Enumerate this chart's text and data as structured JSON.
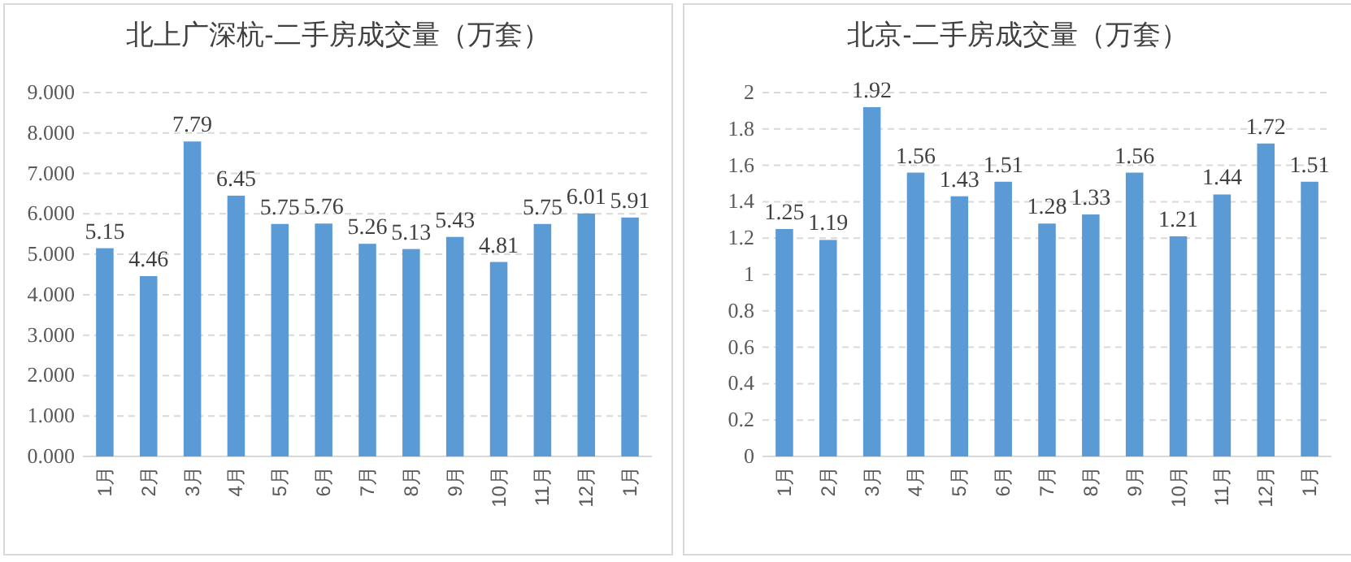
{
  "chart_data": [
    {
      "type": "bar",
      "title": "北上广深杭-二手房成交量（万套）",
      "categories": [
        "1月",
        "2月",
        "3月",
        "4月",
        "5月",
        "6月",
        "7月",
        "8月",
        "9月",
        "10月",
        "11月",
        "12月",
        "1月"
      ],
      "series": [
        {
          "color": "#5b9bd5",
          "values": [
            5.15,
            4.46,
            7.79,
            6.45,
            5.75,
            5.76,
            5.26,
            5.13,
            5.43,
            4.81,
            5.75,
            6.01,
            5.91
          ]
        }
      ],
      "ylim": [
        0,
        9
      ],
      "yticks": [
        {
          "value": 0,
          "label": "0.000"
        },
        {
          "value": 1,
          "label": "1.000"
        },
        {
          "value": 2,
          "label": "2.000"
        },
        {
          "value": 3,
          "label": "3.000"
        },
        {
          "value": 4,
          "label": "4.000"
        },
        {
          "value": 5,
          "label": "5.000"
        },
        {
          "value": 6,
          "label": "6.000"
        },
        {
          "value": 7,
          "label": "7.000"
        },
        {
          "value": 8,
          "label": "8.000"
        },
        {
          "value": 9,
          "label": "9.000"
        }
      ],
      "grid": "y",
      "data_labels": true
    },
    {
      "type": "bar",
      "title": "北京-二手房成交量（万套）",
      "categories": [
        "1月",
        "2月",
        "3月",
        "4月",
        "5月",
        "6月",
        "7月",
        "8月",
        "9月",
        "10月",
        "11月",
        "12月",
        "1月"
      ],
      "series": [
        {
          "color": "#5b9bd5",
          "values": [
            1.25,
            1.19,
            1.92,
            1.56,
            1.43,
            1.51,
            1.28,
            1.33,
            1.56,
            1.21,
            1.44,
            1.72,
            1.51
          ]
        }
      ],
      "ylim": [
        0,
        2
      ],
      "yticks": [
        0,
        0.2,
        0.4,
        0.6,
        0.8,
        1,
        1.2,
        1.4,
        1.6,
        1.8,
        2
      ],
      "grid": "y",
      "data_labels": true
    }
  ]
}
